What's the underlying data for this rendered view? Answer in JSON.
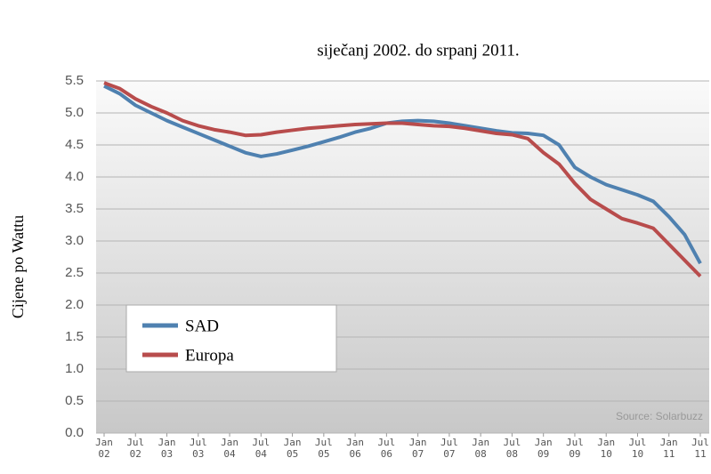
{
  "chart_data": {
    "type": "line",
    "subtitle": "siječanj 2002. do srpanj 2011.",
    "ylabel": "Cijene po Wattu",
    "annotation": "Source: Solarbuzz",
    "x": [
      "2002-01",
      "2002-04",
      "2002-07",
      "2002-10",
      "2003-01",
      "2003-04",
      "2003-07",
      "2003-10",
      "2004-01",
      "2004-04",
      "2004-07",
      "2004-10",
      "2005-01",
      "2005-04",
      "2005-07",
      "2005-10",
      "2006-01",
      "2006-04",
      "2006-07",
      "2006-10",
      "2007-01",
      "2007-04",
      "2007-07",
      "2007-10",
      "2008-01",
      "2008-04",
      "2008-07",
      "2008-10",
      "2009-01",
      "2009-04",
      "2009-07",
      "2009-10",
      "2010-01",
      "2010-04",
      "2010-07",
      "2010-10",
      "2011-01",
      "2011-04",
      "2011-07"
    ],
    "series": [
      {
        "name": "SAD",
        "color": "#4f81b0",
        "values": [
          5.42,
          5.3,
          5.12,
          5.0,
          4.88,
          4.78,
          4.68,
          4.58,
          4.48,
          4.38,
          4.32,
          4.36,
          4.42,
          4.48,
          4.55,
          4.62,
          4.7,
          4.76,
          4.84,
          4.87,
          4.88,
          4.87,
          4.84,
          4.8,
          4.76,
          4.72,
          4.69,
          4.68,
          4.65,
          4.5,
          4.15,
          4.0,
          3.88,
          3.8,
          3.72,
          3.62,
          3.38,
          3.1,
          2.65
        ]
      },
      {
        "name": "Europa",
        "color": "#b84c4c",
        "values": [
          5.47,
          5.38,
          5.22,
          5.1,
          5.0,
          4.88,
          4.8,
          4.74,
          4.7,
          4.65,
          4.66,
          4.7,
          4.73,
          4.76,
          4.78,
          4.8,
          4.82,
          4.83,
          4.84,
          4.84,
          4.82,
          4.8,
          4.79,
          4.76,
          4.72,
          4.68,
          4.66,
          4.6,
          4.38,
          4.2,
          3.9,
          3.65,
          3.5,
          3.35,
          3.28,
          3.2,
          2.95,
          2.7,
          2.45
        ]
      }
    ],
    "ylim": [
      0,
      5.5
    ],
    "yticks": [
      {
        "value": 0,
        "label": "0.0"
      },
      0.5,
      {
        "value": 1,
        "label": "1.0"
      },
      1.5,
      {
        "value": 2,
        "label": "2.0"
      },
      2.5,
      {
        "value": 3,
        "label": "3.0"
      },
      3.5,
      {
        "value": 4,
        "label": "4.0"
      },
      4.5,
      {
        "value": 5,
        "label": "5.0"
      },
      5.5
    ],
    "xticks": [
      {
        "value": "2002-01",
        "label": "Jan 02"
      },
      {
        "value": "2002-07",
        "label": "Jul 02"
      },
      {
        "value": "2003-01",
        "label": "Jan 03"
      },
      {
        "value": "2003-07",
        "label": "Jul 03"
      },
      {
        "value": "2004-01",
        "label": "Jan 04"
      },
      {
        "value": "2004-07",
        "label": "Jul 04"
      },
      {
        "value": "2005-01",
        "label": "Jan 05"
      },
      {
        "value": "2005-07",
        "label": "Jul 05"
      },
      {
        "value": "2006-01",
        "label": "Jan 06"
      },
      {
        "value": "2006-07",
        "label": "Jul 06"
      },
      {
        "value": "2007-01",
        "label": "Jan 07"
      },
      {
        "value": "2007-07",
        "label": "Jul 07"
      },
      {
        "value": "2008-01",
        "label": "Jan 08"
      },
      {
        "value": "2008-07",
        "label": "Jul 08"
      },
      {
        "value": "2009-01",
        "label": "Jan 09"
      },
      {
        "value": "2009-07",
        "label": "Jul 09"
      },
      {
        "value": "2010-01",
        "label": "Jan 10"
      },
      {
        "value": "2010-07",
        "label": "Jul 10"
      },
      {
        "value": "2011-01",
        "label": "Jan 11"
      },
      {
        "value": "2011-07",
        "label": "Jul 11"
      }
    ],
    "grid": true
  }
}
